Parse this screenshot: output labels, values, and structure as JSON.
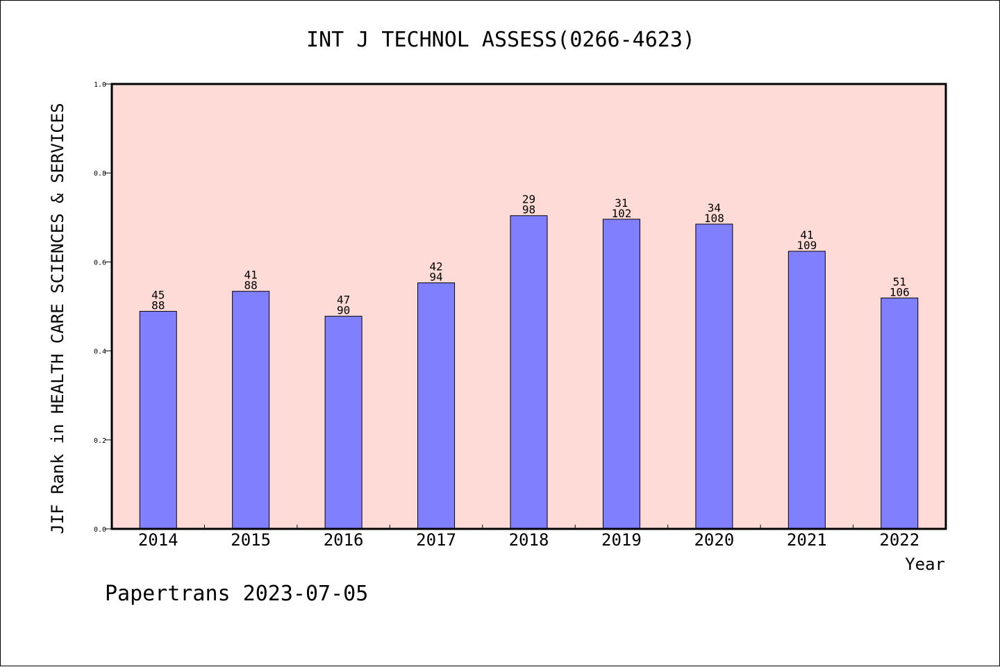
{
  "chart_data": {
    "type": "bar",
    "title": "INT J TECHNOL ASSESS(0266-4623)",
    "ylabel": "JIF Rank in HEALTH CARE SCIENCES & SERVICES",
    "xlabel": "Year",
    "categories": [
      "2014",
      "2015",
      "2016",
      "2017",
      "2018",
      "2019",
      "2020",
      "2021",
      "2022"
    ],
    "values": [
      0.489,
      0.534,
      0.478,
      0.553,
      0.704,
      0.696,
      0.685,
      0.624,
      0.519
    ],
    "rank_labels": [
      "45",
      "41",
      "47",
      "42",
      "29",
      "31",
      "34",
      "41",
      "51"
    ],
    "total_labels": [
      "88",
      "88",
      "90",
      "94",
      "98",
      "102",
      "108",
      "109",
      "106"
    ],
    "ylim": [
      0,
      1.0
    ],
    "yticks": [
      "0.0",
      "0.2",
      "0.4",
      "0.6",
      "0.8",
      "1.0"
    ],
    "grid": false,
    "colors": {
      "plot_background": "#ffdbd8",
      "bar": "#8080ff"
    }
  },
  "footer": {
    "text": "Papertrans 2023-07-05"
  }
}
